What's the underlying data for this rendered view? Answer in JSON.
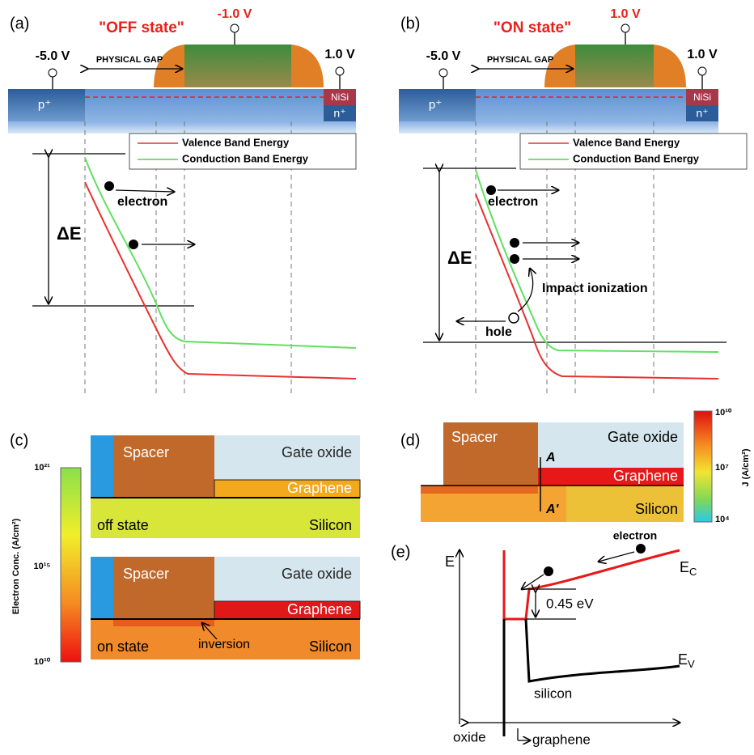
{
  "panel_a": {
    "label": "(a)",
    "title": "\"OFF state\"",
    "gate_voltage": "-1.0 V",
    "source_voltage": "-5.0 V",
    "drain_voltage": "1.0 V",
    "gap_label": "PHYSICAL GAP",
    "source_region": "p⁺",
    "drain_contact": "NiSi",
    "drain_region": "n⁺",
    "legend": [
      "Valence Band Energy",
      "Conduction Band Energy"
    ],
    "carrier": "electron",
    "energy_gap": "ΔE"
  },
  "panel_b": {
    "label": "(b)",
    "title": "\"ON state\"",
    "gate_voltage": "1.0 V",
    "source_voltage": "-5.0 V",
    "drain_voltage": "1.0 V",
    "gap_label": "PHYSICAL GAP",
    "source_region": "p⁺",
    "drain_contact": "NiSi",
    "drain_region": "n⁺",
    "legend": [
      "Valence Band Energy",
      "Conduction Band Energy"
    ],
    "carrier": "electron",
    "energy_gap": "ΔE",
    "impact": "Impact ionization",
    "hole": "hole"
  },
  "panel_c": {
    "label": "(c)",
    "colorbar_title": "Electron Conc. (A/cm²)",
    "colorbar_ticks": [
      "10²¹",
      "10¹⁵",
      "10¹⁰"
    ],
    "off": {
      "spacer": "Spacer",
      "oxide": "Gate oxide",
      "graphene": "Graphene",
      "state": "off state",
      "silicon": "Silicon"
    },
    "on": {
      "spacer": "Spacer",
      "oxide": "Gate oxide",
      "graphene": "Graphene",
      "inversion": "inversion",
      "state": "on state",
      "silicon": "Silicon"
    }
  },
  "panel_d": {
    "label": "(d)",
    "spacer": "Spacer",
    "oxide": "Gate oxide",
    "cut_start": "A",
    "graphene": "Graphene",
    "cut_end": "A'",
    "silicon": "Silicon",
    "colorbar_ticks": [
      "10¹⁰",
      "10⁷",
      "10⁴"
    ],
    "colorbar_title": "J (A/cm²)"
  },
  "panel_e": {
    "label": "(e)",
    "axis": "E",
    "carrier": "electron",
    "conduction": {
      "main": "E",
      "sub": "C"
    },
    "barrier": "0.45 eV",
    "valence": {
      "main": "E",
      "sub": "V"
    },
    "silicon": "silicon",
    "oxide": "oxide",
    "graphene": "graphene"
  }
}
